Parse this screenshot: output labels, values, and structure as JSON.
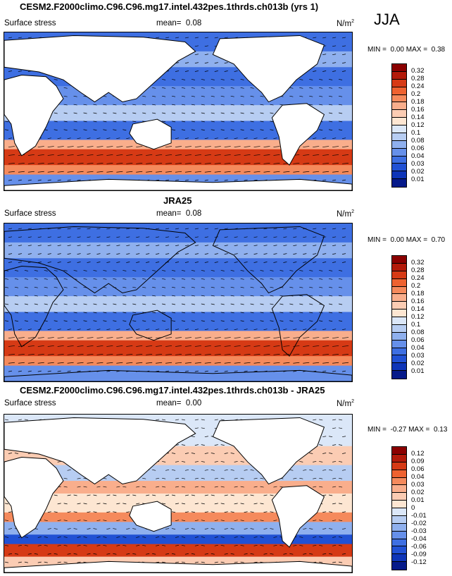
{
  "season": "JJA",
  "panels": [
    {
      "title": "CESM2.F2000climo.C96.C96.mg17.intel.432pes.1thrds.ch013b (yrs 1)",
      "variable": "Surface stress",
      "mean_label": "mean=",
      "mean": "0.08",
      "units": "N/m",
      "units_exp": "2",
      "min_label": "MIN =",
      "min": "0.00",
      "max_label": "MAX =",
      "max": "0.38",
      "levels": [
        "0.32",
        "0.28",
        "0.24",
        "0.2",
        "0.18",
        "0.16",
        "0.14",
        "0.12",
        "0.1",
        "0.08",
        "0.06",
        "0.04",
        "0.03",
        "0.02",
        "0.01"
      ],
      "colors": [
        "#8b0000",
        "#b31a0a",
        "#d63a15",
        "#ee6230",
        "#f58a5c",
        "#f9ae8c",
        "#fbccb3",
        "#fde6d2",
        "#dbe7f8",
        "#b7cdf2",
        "#8fb0ee",
        "#6690ea",
        "#3e6fe2",
        "#2151d4",
        "#0e35b8",
        "#061a8a"
      ]
    },
    {
      "title": "JRA25",
      "variable": "Surface stress",
      "mean_label": "mean=",
      "mean": "0.08",
      "units": "N/m",
      "units_exp": "2",
      "min_label": "MIN =",
      "min": "0.00",
      "max_label": "MAX =",
      "max": "0.70",
      "levels": [
        "0.32",
        "0.28",
        "0.24",
        "0.2",
        "0.18",
        "0.16",
        "0.14",
        "0.12",
        "0.1",
        "0.08",
        "0.06",
        "0.04",
        "0.03",
        "0.02",
        "0.01"
      ],
      "colors": [
        "#8b0000",
        "#b31a0a",
        "#d63a15",
        "#ee6230",
        "#f58a5c",
        "#f9ae8c",
        "#fbccb3",
        "#fde6d2",
        "#dbe7f8",
        "#b7cdf2",
        "#8fb0ee",
        "#6690ea",
        "#3e6fe2",
        "#2151d4",
        "#0e35b8",
        "#061a8a"
      ]
    },
    {
      "title": "CESM2.F2000climo.C96.C96.mg17.intel.432pes.1thrds.ch013b - JRA25",
      "variable": "Surface stress",
      "mean_label": "mean=",
      "mean": "0.00",
      "units": "N/m",
      "units_exp": "2",
      "min_label": "MIN =",
      "min": "-0.27",
      "max_label": "MAX =",
      "max": "0.13",
      "levels": [
        "0.12",
        "0.09",
        "0.06",
        "0.04",
        "0.03",
        "0.02",
        "0.01",
        "0",
        "-0.01",
        "-0.02",
        "-0.03",
        "-0.04",
        "-0.06",
        "-0.09",
        "-0.12"
      ],
      "colors": [
        "#8b0000",
        "#b31a0a",
        "#d63a15",
        "#ee6230",
        "#f58a5c",
        "#f9ae8c",
        "#fbccb3",
        "#fde6d2",
        "#dbe7f8",
        "#b7cdf2",
        "#8fb0ee",
        "#6690ea",
        "#3e6fe2",
        "#2151d4",
        "#0e35b8",
        "#061a8a"
      ]
    }
  ]
}
